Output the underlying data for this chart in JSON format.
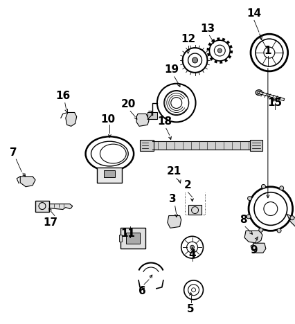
{
  "bg_color": "#ffffff",
  "line_color": "#000000",
  "figsize": [
    4.27,
    4.68
  ],
  "dpi": 100,
  "label_positions": [
    [
      "1",
      388,
      72
    ],
    [
      "2",
      272,
      268
    ],
    [
      "3",
      250,
      288
    ],
    [
      "4",
      278,
      368
    ],
    [
      "5",
      276,
      448
    ],
    [
      "6",
      205,
      422
    ],
    [
      "7",
      18,
      220
    ],
    [
      "8",
      352,
      318
    ],
    [
      "9",
      368,
      362
    ],
    [
      "10",
      155,
      172
    ],
    [
      "11",
      185,
      338
    ],
    [
      "12",
      272,
      55
    ],
    [
      "13",
      300,
      40
    ],
    [
      "14",
      368,
      18
    ],
    [
      "15",
      398,
      148
    ],
    [
      "16",
      90,
      138
    ],
    [
      "17",
      72,
      322
    ],
    [
      "18",
      238,
      175
    ],
    [
      "19",
      248,
      100
    ],
    [
      "20",
      185,
      150
    ],
    [
      "21",
      252,
      248
    ]
  ],
  "leaders": [
    [
      "1",
      388,
      80,
      388,
      95,
      388,
      290
    ],
    [
      "2",
      272,
      278,
      278,
      285,
      278,
      295
    ],
    [
      "3",
      253,
      298,
      255,
      310,
      255,
      318
    ],
    [
      "4",
      278,
      378,
      278,
      362,
      278,
      355
    ],
    [
      "5",
      276,
      438,
      276,
      428,
      276,
      420
    ],
    [
      "6",
      208,
      412,
      215,
      405,
      222,
      395
    ],
    [
      "7",
      22,
      230,
      30,
      248,
      38,
      258
    ],
    [
      "8",
      355,
      328,
      362,
      335,
      368,
      342
    ],
    [
      "9",
      370,
      352,
      372,
      345,
      375,
      340
    ],
    [
      "10",
      158,
      180,
      158,
      192,
      158,
      202
    ],
    [
      "11",
      188,
      328,
      188,
      340,
      188,
      348
    ],
    [
      "12",
      272,
      65,
      272,
      72,
      272,
      80
    ],
    [
      "13",
      303,
      50,
      308,
      58,
      310,
      65
    ],
    [
      "14",
      368,
      28,
      375,
      45,
      380,
      60
    ],
    [
      "15",
      398,
      158,
      398,
      148,
      395,
      138
    ],
    [
      "16",
      93,
      148,
      95,
      158,
      98,
      165
    ],
    [
      "17",
      78,
      312,
      72,
      305,
      68,
      298
    ],
    [
      "18",
      240,
      185,
      245,
      195,
      248,
      205
    ],
    [
      "19",
      252,
      110,
      258,
      120,
      262,
      128
    ],
    [
      "20",
      188,
      160,
      195,
      168,
      200,
      175
    ],
    [
      "21",
      255,
      258,
      260,
      262,
      262,
      268
    ]
  ]
}
